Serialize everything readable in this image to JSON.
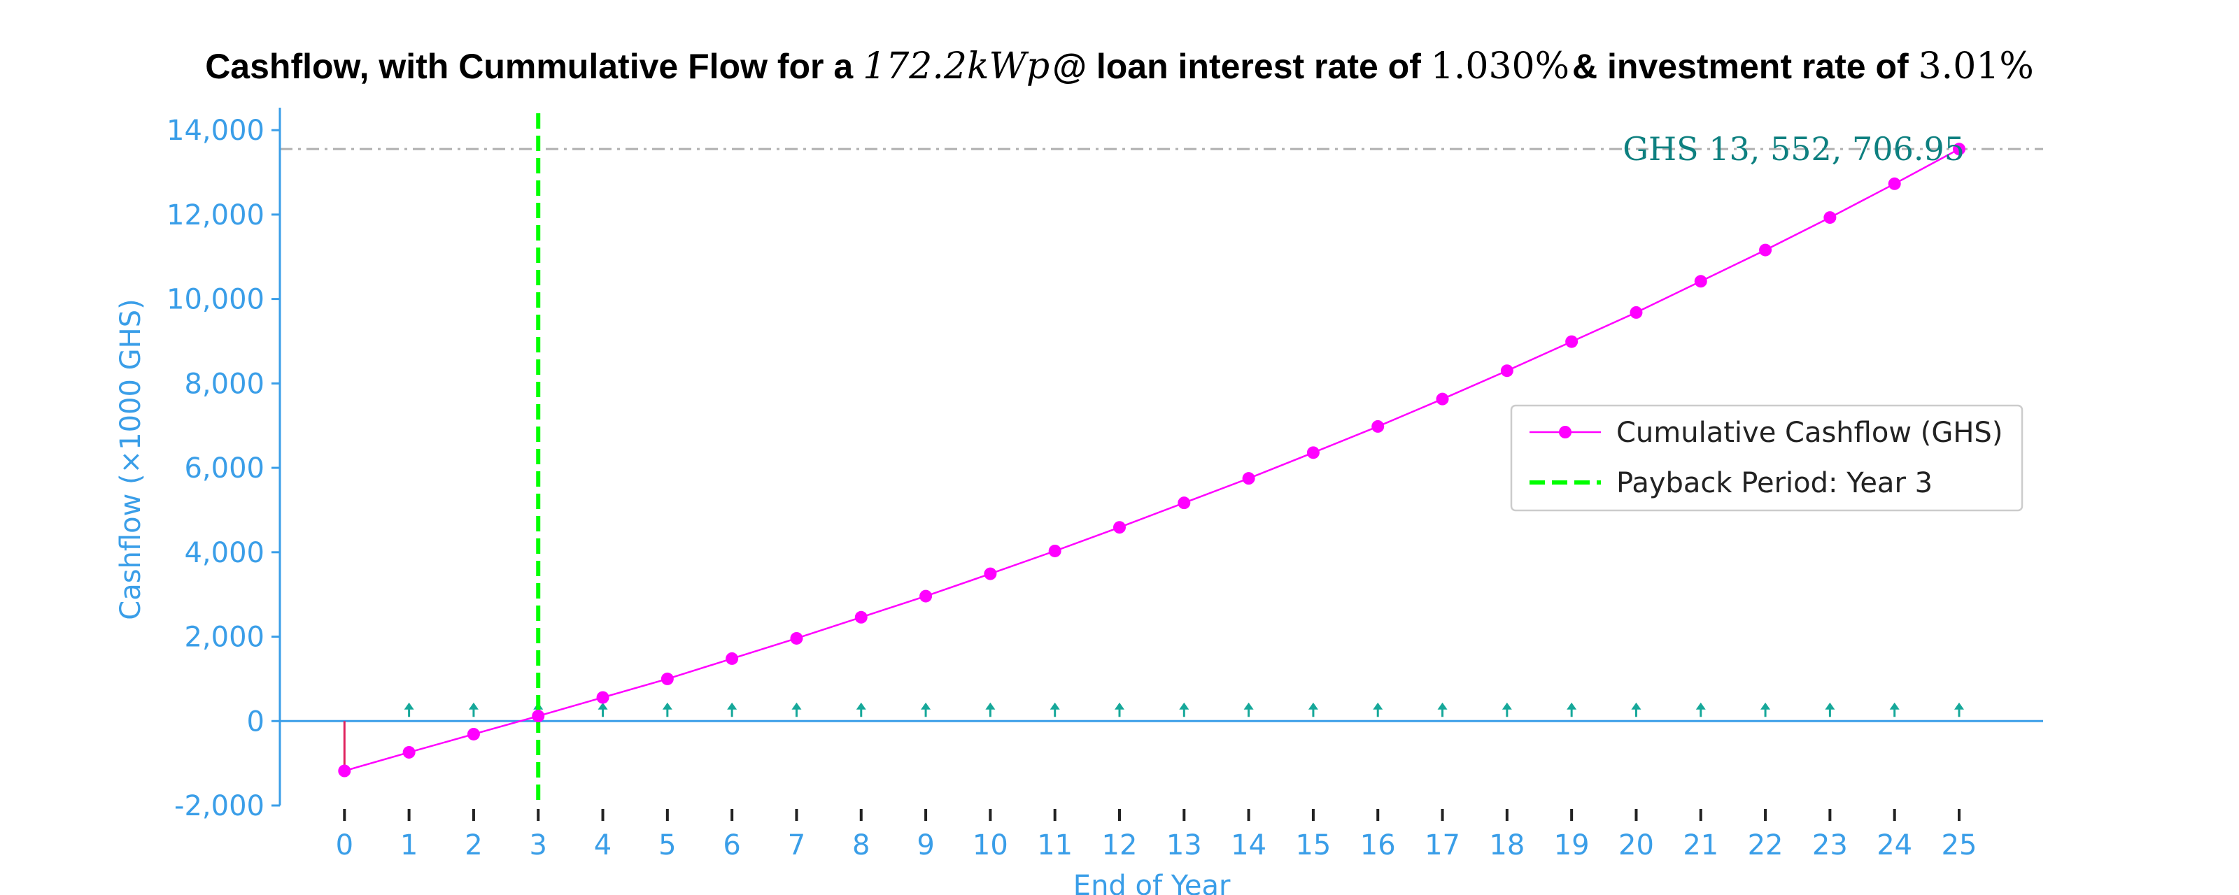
{
  "title": {
    "part1": "Cashflow, with Cummulative Flow for a ",
    "capacity": "172.2kWp",
    "part2": " @ loan interest rate of ",
    "loan_rate": "1.030%",
    "part3": " & investment rate of ",
    "invest_rate": "3.01%"
  },
  "chart_data": {
    "type": "line",
    "title": "Cashflow, with Cummulative Flow for a 172.2kWp @ loan interest rate of 1.030% & investment rate of 3.01%",
    "xlabel": "End of Year",
    "ylabel": "Cashflow (×1000 GHS)",
    "xlim": [
      -1,
      26.3
    ],
    "ylim": [
      -2000,
      14400
    ],
    "x": [
      0,
      1,
      2,
      3,
      4,
      5,
      6,
      7,
      8,
      9,
      10,
      11,
      12,
      13,
      14,
      15,
      16,
      17,
      18,
      19,
      20,
      21,
      22,
      23,
      24,
      25
    ],
    "x_tick_labels": [
      "0",
      "1",
      "2",
      "3",
      "4",
      "5",
      "6",
      "7",
      "8",
      "9",
      "10",
      "11",
      "12",
      "13",
      "14",
      "15",
      "16",
      "17",
      "18",
      "19",
      "20",
      "21",
      "22",
      "23",
      "24",
      "25"
    ],
    "y_ticks": [
      -2000,
      0,
      2000,
      4000,
      6000,
      8000,
      10000,
      12000,
      14000
    ],
    "y_tick_labels": [
      "-2,000",
      "0",
      "2,000",
      "4,000",
      "6,000",
      "8,000",
      "10,000",
      "12,000",
      "14,000"
    ],
    "series": [
      {
        "name": "Cumulative Cashflow (GHS)",
        "color": "#ff00ff",
        "values": [
          -1180,
          -740,
          -310,
          120,
          560,
          1000,
          1480,
          1960,
          2460,
          2960,
          3490,
          4030,
          4590,
          5170,
          5750,
          6360,
          6980,
          7630,
          8300,
          8990,
          9680,
          10420,
          11160,
          11930,
          12730,
          13552.7
        ]
      }
    ],
    "annual_flows": {
      "color": "#16a89a",
      "negative_color": "#e0245e",
      "initial": -1180,
      "values": [
        0,
        440,
        440,
        440,
        440,
        440,
        440,
        440,
        440,
        440,
        440,
        440,
        440,
        440,
        440,
        440,
        440,
        440,
        440,
        440,
        440,
        440,
        440,
        440,
        440,
        440
      ]
    },
    "payback": {
      "name": "Payback Period: Year 3",
      "year": 3,
      "color": "#00ff00"
    },
    "final_value": {
      "label": "GHS 13, 552, 706.95",
      "value": 13552.7,
      "color": "#0e8080"
    },
    "reference_line_color": "#b0b0b0",
    "axis_color": "#3a9ee8",
    "zero_line_color": "#3a9ee8",
    "legend": {
      "placement": "center-right",
      "entries": [
        "Cumulative Cashflow (GHS)",
        "Payback Period: Year 3"
      ]
    },
    "grid": false
  }
}
